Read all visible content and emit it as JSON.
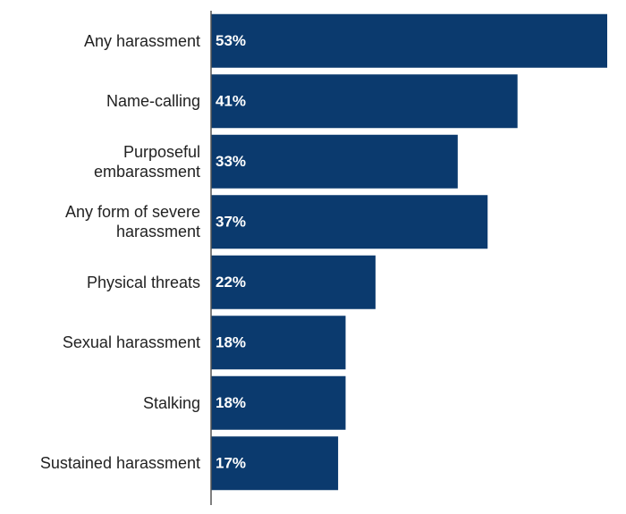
{
  "chart_data": {
    "type": "bar",
    "orientation": "horizontal",
    "categories": [
      "Any harassment",
      "Name-calling",
      "Purposeful\nembarassment",
      "Any form of severe\nharassment",
      "Physical threats",
      "Sexual harassment",
      "Stalking",
      "Sustained harassment"
    ],
    "values": [
      53,
      41,
      33,
      37,
      22,
      18,
      18,
      17
    ],
    "value_labels": [
      "53%",
      "41%",
      "33%",
      "37%",
      "22%",
      "18%",
      "18%",
      "17%"
    ],
    "color": "#0b3a6e"
  }
}
